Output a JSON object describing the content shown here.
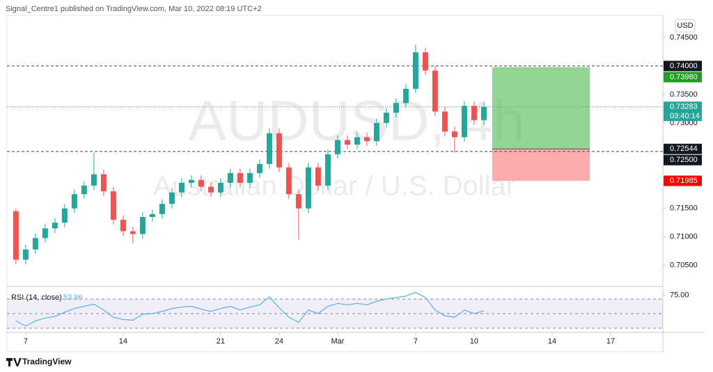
{
  "header": {
    "publisher": "Signal_Centre1 published on TradingView.com, Mar 10, 2022 08:19 UTC+2"
  },
  "chart_data": [
    {
      "type": "candlestick",
      "watermark_symbol": "AUDUSD, 4h",
      "watermark_name": "Australian Dollar / U.S. Dollar",
      "currency": "USD",
      "up_color": "#26a69a",
      "down_color": "#ef5350",
      "x": [
        -0.5,
        0,
        0.5,
        1,
        1.5,
        2,
        2.5,
        3,
        3.5,
        4,
        4.5,
        5,
        5.5,
        6,
        6.5,
        7,
        7.5,
        8,
        8.5,
        9,
        9.5,
        10,
        10.5,
        11,
        11.5,
        12,
        12.5,
        13,
        13.5,
        14,
        14.5,
        15,
        15.5,
        16,
        16.5,
        17,
        17.5,
        18,
        18.5,
        19,
        19.5,
        20,
        20.5,
        21,
        21.5,
        22,
        22.5,
        23,
        23.5
      ],
      "open": [
        0.7145,
        0.706,
        0.7078,
        0.7098,
        0.7115,
        0.7125,
        0.715,
        0.7175,
        0.719,
        0.721,
        0.718,
        0.713,
        0.711,
        0.7105,
        0.7135,
        0.714,
        0.7158,
        0.7178,
        0.7195,
        0.72,
        0.7188,
        0.7178,
        0.7195,
        0.7212,
        0.7195,
        0.7212,
        0.7228,
        0.7282,
        0.7222,
        0.7175,
        0.715,
        0.7222,
        0.719,
        0.7245,
        0.727,
        0.7262,
        0.7275,
        0.7268,
        0.73,
        0.7318,
        0.7335,
        0.736,
        0.7424,
        0.7392,
        0.732,
        0.7285,
        0.7275,
        0.733,
        0.7305
      ],
      "high": [
        0.715,
        0.7086,
        0.7106,
        0.7123,
        0.7133,
        0.7158,
        0.7183,
        0.7198,
        0.7248,
        0.7218,
        0.7188,
        0.7138,
        0.7118,
        0.7143,
        0.7148,
        0.7166,
        0.7186,
        0.7203,
        0.7208,
        0.7208,
        0.7196,
        0.7203,
        0.722,
        0.722,
        0.722,
        0.7236,
        0.729,
        0.729,
        0.723,
        0.7183,
        0.723,
        0.723,
        0.7253,
        0.7278,
        0.7278,
        0.7283,
        0.7283,
        0.7308,
        0.7326,
        0.7343,
        0.7368,
        0.7437,
        0.7432,
        0.74,
        0.7328,
        0.7293,
        0.7338,
        0.7338,
        0.7336
      ],
      "low": [
        0.7052,
        0.7052,
        0.707,
        0.709,
        0.7107,
        0.7117,
        0.7142,
        0.7167,
        0.7182,
        0.7172,
        0.7122,
        0.7102,
        0.7089,
        0.7097,
        0.7127,
        0.7132,
        0.715,
        0.717,
        0.7187,
        0.718,
        0.717,
        0.717,
        0.7187,
        0.7187,
        0.7187,
        0.7204,
        0.722,
        0.7214,
        0.7167,
        0.7095,
        0.7142,
        0.7182,
        0.7182,
        0.7237,
        0.7254,
        0.7254,
        0.726,
        0.726,
        0.7292,
        0.731,
        0.7327,
        0.7352,
        0.7384,
        0.7312,
        0.7277,
        0.7248,
        0.7267,
        0.7297,
        0.7297
      ],
      "close": [
        0.706,
        0.7078,
        0.7098,
        0.7115,
        0.7125,
        0.715,
        0.7175,
        0.719,
        0.721,
        0.718,
        0.713,
        0.711,
        0.7105,
        0.7135,
        0.714,
        0.7158,
        0.7178,
        0.7195,
        0.72,
        0.7188,
        0.7178,
        0.7195,
        0.7212,
        0.7195,
        0.7212,
        0.7228,
        0.7282,
        0.7222,
        0.7175,
        0.715,
        0.7222,
        0.719,
        0.7245,
        0.727,
        0.7262,
        0.7275,
        0.7268,
        0.73,
        0.7318,
        0.7335,
        0.736,
        0.7424,
        0.7392,
        0.732,
        0.7285,
        0.7275,
        0.733,
        0.7305,
        0.73283
      ],
      "xlim": [
        -0.96,
        32.68
      ],
      "xticks": [
        {
          "value": 0,
          "label": "7"
        },
        {
          "value": 5,
          "label": "14"
        },
        {
          "value": 10,
          "label": "21"
        },
        {
          "value": 13,
          "label": "24"
        },
        {
          "value": 16,
          "label": "Mar"
        },
        {
          "value": 20,
          "label": "7"
        },
        {
          "value": 23,
          "label": "10"
        },
        {
          "value": 27,
          "label": "14"
        },
        {
          "value": 30,
          "label": "17"
        }
      ],
      "ylim": [
        0.7013,
        0.7489
      ],
      "yticks": [
        {
          "value": 0.745,
          "label": "0.74500"
        },
        {
          "value": 0.735,
          "label": "0.73500"
        },
        {
          "value": 0.73,
          "label": "0.73000"
        },
        {
          "value": 0.715,
          "label": "0.71500"
        },
        {
          "value": 0.71,
          "label": "0.71000"
        },
        {
          "value": 0.705,
          "label": "0.70500"
        }
      ],
      "price_lines": [
        {
          "value": 0.74,
          "label": "0.74000"
        },
        {
          "value": 0.725,
          "label": "0.72500"
        }
      ],
      "position": {
        "x_start": 23.93,
        "x_end": 28.93,
        "target": {
          "value": 0.7398,
          "label": "0.73980"
        },
        "entry": {
          "value": 0.72544,
          "label": "0.72544"
        },
        "stop": {
          "value": 0.71985,
          "label": "0.71985"
        }
      },
      "last_price": {
        "value": 0.73283,
        "label": "0.73283"
      },
      "countdown": "03:40:14"
    },
    {
      "type": "line",
      "title": "RSI (14, close)",
      "color": "#4fb3e6",
      "x": [
        -0.5,
        0,
        0.5,
        1,
        1.5,
        2,
        2.5,
        3,
        3.5,
        4,
        4.5,
        5,
        5.5,
        6,
        6.5,
        7,
        7.5,
        8,
        8.5,
        9,
        9.5,
        10,
        10.5,
        11,
        11.5,
        12,
        12.5,
        13,
        13.5,
        14,
        14.5,
        15,
        15.5,
        16,
        16.5,
        17,
        17.5,
        18,
        18.5,
        19,
        19.5,
        20,
        20.5,
        21,
        21.5,
        22,
        22.5,
        23,
        23.5
      ],
      "values": [
        40,
        33,
        40,
        44,
        46,
        52,
        57,
        60,
        63,
        55,
        45,
        42,
        41,
        49,
        50,
        53,
        57,
        59,
        60,
        56,
        53,
        57,
        60,
        55,
        59,
        62,
        73,
        58,
        45,
        38,
        55,
        50,
        60,
        64,
        62,
        64,
        62,
        67,
        70,
        72,
        74,
        79,
        72,
        55,
        47,
        45,
        55,
        50,
        53.86
      ],
      "bands": [
        30,
        50,
        70
      ],
      "xlim": [
        -0.96,
        32.68
      ],
      "ylim": [
        24.3,
        84.3
      ],
      "yticks": [
        {
          "value": 75,
          "label": "75.00"
        }
      ]
    }
  ],
  "footer": {
    "brand": "TradingView"
  }
}
